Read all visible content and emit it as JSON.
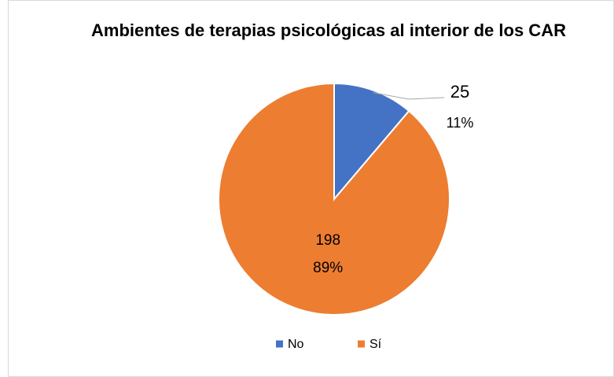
{
  "chart_data": {
    "type": "pie",
    "title": "Ambientes de terapias psicológicas al interior de los CAR",
    "categories": [
      "No",
      "Sí"
    ],
    "values": [
      25,
      198
    ],
    "percent_labels": [
      "11%",
      "89%"
    ],
    "colors": [
      "#4472c4",
      "#ed7d31"
    ],
    "legend": "bottom"
  }
}
